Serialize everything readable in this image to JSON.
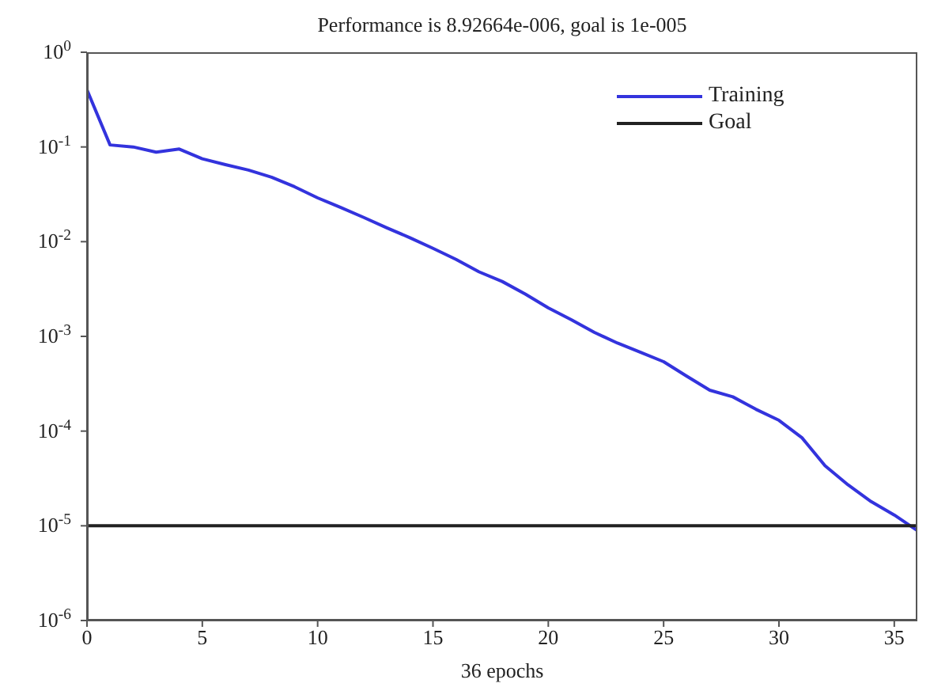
{
  "chart_data": {
    "type": "line",
    "title": "Performance is 8.92664e-006, goal is 1e-005",
    "xlabel": "36 epochs",
    "log": "y",
    "xlim": [
      0,
      36
    ],
    "xticks": [
      0,
      5,
      10,
      15,
      20,
      25,
      30,
      35
    ],
    "ylim": [
      1e-06,
      1
    ],
    "yticks": [
      {
        "value": 1e-06,
        "label": "10$^{-6}$"
      },
      {
        "value": 1e-05,
        "label": "10$^{-5}$"
      },
      {
        "value": 0.0001,
        "label": "10$^{-4}$"
      },
      {
        "value": 0.001,
        "label": "10$^{-3}$"
      },
      {
        "value": 0.01,
        "label": "10$^{-2}$"
      },
      {
        "value": 0.1,
        "label": "10$^{-1}$"
      },
      {
        "value": 1,
        "label": "10$^{0}$"
      }
    ],
    "legend": "top right",
    "marker": "none",
    "series": [
      {
        "name": "Training",
        "color": "#3333dd",
        "x": [
          0,
          1,
          2,
          3,
          4,
          5,
          6,
          7,
          8,
          9,
          10,
          11,
          12,
          13,
          14,
          15,
          16,
          17,
          18,
          19,
          20,
          21,
          22,
          23,
          24,
          25,
          26,
          27,
          28,
          29,
          30,
          31,
          32,
          33,
          34,
          35,
          36
        ],
        "values": [
          0.4,
          0.105,
          0.1,
          0.088,
          0.095,
          0.075,
          0.065,
          0.057,
          0.048,
          0.038,
          0.029,
          0.023,
          0.018,
          0.014,
          0.011,
          0.0085,
          0.0065,
          0.0048,
          0.0038,
          0.0028,
          0.002,
          0.0015,
          0.0011,
          0.00085,
          0.00068,
          0.00054,
          0.00038,
          0.00027,
          0.00023,
          0.00017,
          0.00013,
          8.5e-05,
          4.3e-05,
          2.7e-05,
          1.8e-05,
          1.3e-05,
          8.9e-06
        ]
      },
      {
        "name": "Goal",
        "color": "#222222",
        "x": [
          0,
          36
        ],
        "values": [
          1e-05,
          1e-05
        ]
      }
    ]
  }
}
